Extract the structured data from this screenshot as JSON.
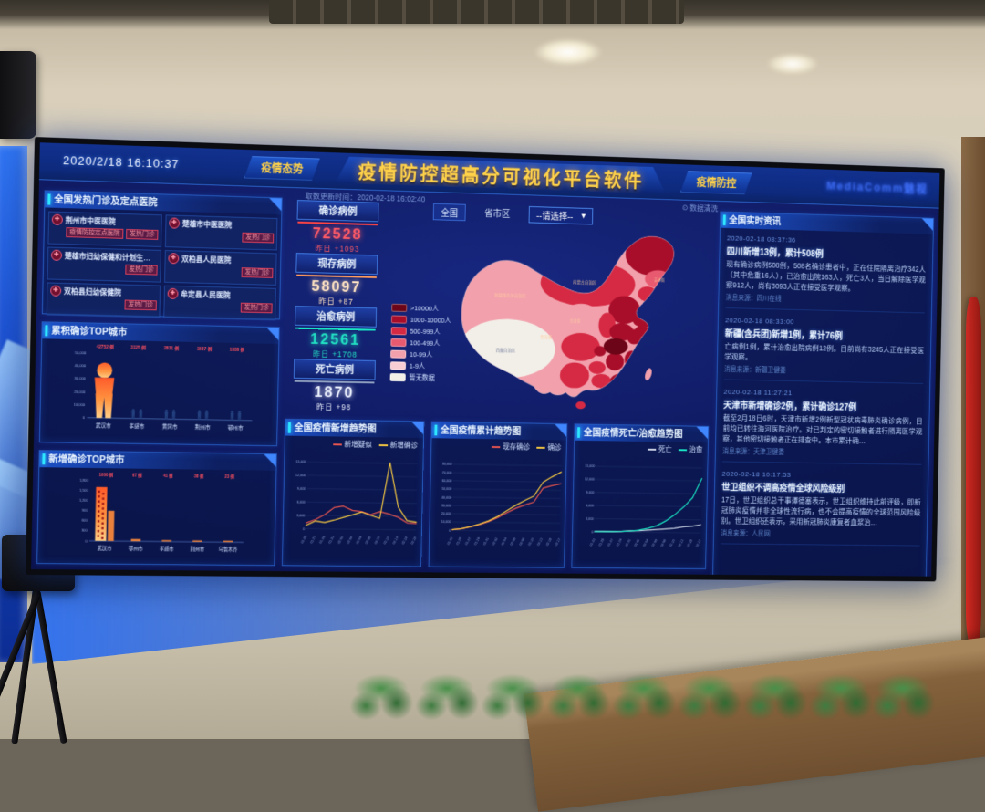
{
  "palette": {
    "accent": "#2ee6ff",
    "gold": "#ffd24a",
    "alarm": "#ff4a5a",
    "cyan": "#19e3c2"
  },
  "header": {
    "clock": "2020/2/18 16:10:37",
    "tab_left": "疫情态势",
    "title": "疫情防控超高分可视化平台软件",
    "tab_right": "疫情防控",
    "logo": "MediaComm魅视",
    "update_time": "取数更新时间：2020-02-18 16:02:40",
    "data_tool": "⊙ 数据清洗"
  },
  "hospitals": {
    "title": "全国发热门诊及定点医院",
    "items": [
      {
        "name": "荆州市中医医院",
        "badges": [
          "疫情防控定点医院",
          "发热门诊"
        ]
      },
      {
        "name": "楚雄市中医医院",
        "badges": [
          "发热门诊"
        ]
      },
      {
        "name": "楚雄市妇幼保健和计划生…",
        "badges": [
          "发热门诊"
        ]
      },
      {
        "name": "双柏县人民医院",
        "badges": [
          "发热门诊"
        ]
      },
      {
        "name": "双柏县妇幼保健院",
        "badges": [
          "发热门诊"
        ]
      },
      {
        "name": "牟定县人民医院",
        "badges": [
          "发热门诊"
        ]
      }
    ]
  },
  "stats": {
    "items": [
      {
        "label": "确诊病例",
        "value": "72528",
        "delta": "昨日 +1093",
        "color": "#ff5a66",
        "bar": "#ff4444"
      },
      {
        "label": "现存病例",
        "value": "58097",
        "delta": "昨日 +87",
        "color": "#ffe3c2",
        "bar": "#ff9a5a"
      },
      {
        "label": "治愈病例",
        "value": "12561",
        "delta": "昨日 +1708",
        "color": "#22e3c4",
        "bar": "#19e3c2"
      },
      {
        "label": "死亡病例",
        "value": "1870",
        "delta": "昨日 +98",
        "color": "#e9eefc",
        "bar": "#8fa0c0"
      }
    ]
  },
  "map": {
    "btn_nation": "全国",
    "btn_province": "省市区",
    "dropdown": "--请选择--",
    "legend": [
      {
        "label": ">10000人",
        "color": "#6b0517"
      },
      {
        "label": "1000-10000人",
        "color": "#a80e2a"
      },
      {
        "label": "500-999人",
        "color": "#d62a44"
      },
      {
        "label": "100-499人",
        "color": "#e85a70"
      },
      {
        "label": "10-99人",
        "color": "#f2a0ac"
      },
      {
        "label": "1-9人",
        "color": "#f8cdd4"
      },
      {
        "label": "暂无数据",
        "color": "#f2efe8"
      }
    ],
    "labels": [
      "新疆维吾尔自治区",
      "内蒙古自治区",
      "青海省",
      "甘肃省",
      "西藏自治区",
      "吉林省"
    ]
  },
  "news": {
    "title": "全国实时资讯",
    "items": [
      {
        "time": "2020-02-18 08:37:36",
        "title": "四川新增13例，累计508例",
        "body": "现有确诊病例508例，508名确诊患者中，正在住院隔离治疗342人（其中危重16人），已治愈出院163人，死亡3人，当日解除医学观察912人，尚有3093人正在接受医学观察。",
        "source": "消息来源：四川在线"
      },
      {
        "time": "2020-02-18 08:33:00",
        "title": "新疆(含兵团)新增1例，累计76例",
        "body": "亡病例1例，累计治愈出院病例12例。目前尚有3245人正在接受医学观察。",
        "source": "消息来源：新疆卫健委"
      },
      {
        "time": "2020-02-18 11:27:21",
        "title": "天津市新增确诊2例，累计确诊127例",
        "body": "截至2月18日6时，天津市新增2例新型冠状病毒肺炎确诊病例，目前均已转往海河医院治疗。对已判定的密切接触者进行隔离医学观察，其他密切接触者正在排查中。本市累计确…",
        "source": "消息来源：天津卫健委"
      },
      {
        "time": "2020-02-18 10:17:53",
        "title": "世卫组织不调高疫情全球风险级别",
        "body": "17日，世卫组织总干事谭德塞表示，世卫组织维持此前评级，即新冠肺炎疫情并非全球性流行病，也不会提高疫情的全球范围风险级别。世卫组织还表示，采用新冠肺炎康复者血浆治…",
        "source": "消息来源：人民网"
      }
    ]
  },
  "chart_data": [
    {
      "id": "top-cities",
      "type": "pictogram",
      "title": "累积确诊TOP城市",
      "categories": [
        "武汉市",
        "孝感市",
        "黄冈市",
        "荆州市",
        "鄂州市"
      ],
      "values": [
        42752,
        3125,
        2831,
        1537,
        1338
      ],
      "unit": "例",
      "ylim": [
        0,
        50000
      ],
      "yticks": [
        0,
        10000,
        20000,
        30000,
        40000,
        50000
      ]
    },
    {
      "id": "new-cities",
      "type": "bar",
      "title": "新增确诊TOP城市",
      "categories": [
        "武汉市",
        "鄂州市",
        "孝感市",
        "荆州市",
        "乌鲁木齐"
      ],
      "values": [
        1600,
        67,
        41,
        38,
        23
      ],
      "values_secondary": [
        900,
        0,
        0,
        0,
        0
      ],
      "unit": "例",
      "ylim": [
        0,
        1800
      ],
      "yticks": [
        0,
        300,
        600,
        900,
        1200,
        1500,
        1800
      ]
    },
    {
      "id": "new-trend",
      "type": "line",
      "title": "全国疫情新增趋势图",
      "x": [
        "01.25",
        "01.27",
        "01.29",
        "01.31",
        "02.02",
        "02.04",
        "02.06",
        "02.08",
        "02.10",
        "02.12",
        "02.14",
        "02.16",
        "02.18"
      ],
      "series": [
        {
          "name": "新增疑似",
          "color": "#e8554f",
          "values": [
            1309,
            2077,
            3248,
            4812,
            5173,
            4214,
            3971,
            3342,
            4008,
            3536,
            2807,
            1563,
            1432
          ]
        },
        {
          "name": "新增确诊",
          "color": "#f5c842",
          "values": [
            769,
            1771,
            1459,
            1982,
            2590,
            3235,
            3887,
            3143,
            2478,
            15152,
            5090,
            2048,
            1749
          ]
        }
      ],
      "ylim": [
        0,
        15000
      ],
      "yticks": [
        0,
        3000,
        6000,
        9000,
        12000,
        15000
      ]
    },
    {
      "id": "cum-trend",
      "type": "line",
      "title": "全国疫情累计趋势图",
      "x": [
        "01.23",
        "01.25",
        "01.27",
        "01.29",
        "01.31",
        "02.02",
        "02.04",
        "02.06",
        "02.08",
        "02.10",
        "02.12",
        "02.15",
        "02.17"
      ],
      "series": [
        {
          "name": "现存确诊",
          "color": "#e8554f",
          "values": [
            771,
            1795,
            4290,
            7184,
            10940,
            15677,
            21917,
            27433,
            31774,
            35329,
            52526,
            55748,
            58016
          ]
        },
        {
          "name": "确诊",
          "color": "#f5c842",
          "values": [
            830,
            1975,
            4515,
            7711,
            11791,
            17205,
            24324,
            31161,
            37198,
            42638,
            59804,
            66492,
            72436
          ]
        }
      ],
      "ylim": [
        0,
        80000
      ],
      "yticks": [
        0,
        10000,
        20000,
        30000,
        40000,
        50000,
        60000,
        70000,
        80000
      ]
    },
    {
      "id": "dt-trend",
      "type": "line",
      "title": "全国疫情死亡/治愈趋势图",
      "x": [
        "01.23",
        "01.25",
        "01.27",
        "01.29",
        "01.31",
        "02.02",
        "02.04",
        "02.06",
        "02.08",
        "02.10",
        "02.12",
        "02.15",
        "02.17"
      ],
      "series": [
        {
          "name": "死亡",
          "color": "#c9d2e4",
          "values": [
            25,
            56,
            82,
            132,
            259,
            361,
            490,
            636,
            811,
            1016,
            1367,
            1523,
            1868
          ]
        },
        {
          "name": "治愈",
          "color": "#19e3c2",
          "values": [
            34,
            49,
            60,
            124,
            243,
            475,
            892,
            1540,
            2650,
            4131,
            5911,
            8096,
            12552
          ]
        }
      ],
      "ylim": [
        0,
        15000
      ],
      "yticks": [
        0,
        3000,
        6000,
        9000,
        12000,
        15000
      ]
    }
  ]
}
